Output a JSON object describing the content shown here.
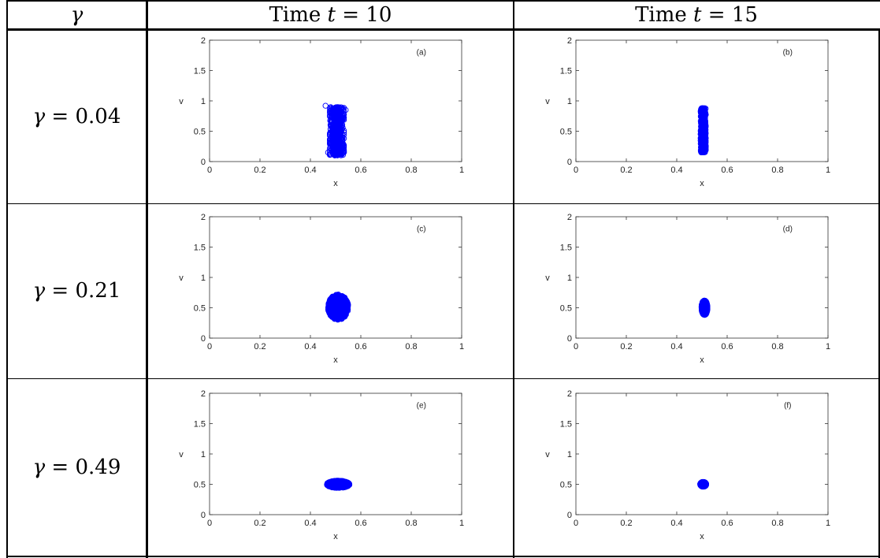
{
  "table": {
    "header_col1": "γ",
    "header_col2_prefix": "Time ",
    "header_col2_var": "t",
    "header_col2_suffix": " = 10",
    "header_col3_prefix": "Time ",
    "header_col3_var": "t",
    "header_col3_suffix": " = 15",
    "rows": [
      {
        "label_var": "γ",
        "label_value": " = 0.04"
      },
      {
        "label_var": "γ",
        "label_value": " = 0.21"
      },
      {
        "label_var": "γ",
        "label_value": " = 0.49"
      }
    ]
  },
  "colors": {
    "marker": "#0000ff",
    "axis": "#333333",
    "grid_border": "#000000"
  },
  "chart_data": [
    {
      "type": "scatter",
      "panel_label": "(a)",
      "xlabel": "x",
      "ylabel": "v",
      "xlim": [
        0,
        1
      ],
      "ylim": [
        0,
        2
      ],
      "xticks": [
        "0",
        "0.2",
        "0.4",
        "0.6",
        "0.8",
        "1"
      ],
      "yticks": [
        "0",
        "0.5",
        "1",
        "1.5",
        "2"
      ],
      "cloud": {
        "x_center": 0.505,
        "x_halfwidth": 0.028,
        "y_min": 0.1,
        "y_max": 0.9,
        "shape": "column"
      },
      "points": [
        [
          0.46,
          0.92
        ],
        [
          0.47,
          0.15
        ],
        [
          0.54,
          0.85
        ],
        [
          0.53,
          0.2
        ]
      ]
    },
    {
      "type": "scatter",
      "panel_label": "(b)",
      "xlabel": "x",
      "ylabel": "v",
      "xlim": [
        0,
        1
      ],
      "ylim": [
        0,
        2
      ],
      "xticks": [
        "0",
        "0.2",
        "0.4",
        "0.6",
        "0.8",
        "1"
      ],
      "yticks": [
        "0",
        "0.5",
        "1",
        "1.5",
        "2"
      ],
      "cloud": {
        "x_center": 0.505,
        "x_halfwidth": 0.01,
        "y_min": 0.15,
        "y_max": 0.88,
        "shape": "column"
      },
      "points": []
    },
    {
      "type": "scatter",
      "panel_label": "(c)",
      "xlabel": "x",
      "ylabel": "v",
      "xlim": [
        0,
        1
      ],
      "ylim": [
        0,
        2
      ],
      "xticks": [
        "0",
        "0.2",
        "0.4",
        "0.6",
        "0.8",
        "1"
      ],
      "yticks": [
        "0",
        "0.5",
        "1",
        "1.5",
        "2"
      ],
      "cloud": {
        "x_center": 0.51,
        "x_halfwidth": 0.04,
        "y_min": 0.3,
        "y_max": 0.72,
        "shape": "ellipse"
      },
      "points": []
    },
    {
      "type": "scatter",
      "panel_label": "(d)",
      "xlabel": "x",
      "ylabel": "v",
      "xlim": [
        0,
        1
      ],
      "ylim": [
        0,
        2
      ],
      "xticks": [
        "0",
        "0.2",
        "0.4",
        "0.6",
        "0.8",
        "1"
      ],
      "yticks": [
        "0",
        "0.5",
        "1",
        "1.5",
        "2"
      ],
      "cloud": {
        "x_center": 0.51,
        "x_halfwidth": 0.012,
        "y_min": 0.38,
        "y_max": 0.62,
        "shape": "ellipse"
      },
      "points": []
    },
    {
      "type": "scatter",
      "panel_label": "(e)",
      "xlabel": "x",
      "ylabel": "v",
      "xlim": [
        0,
        1
      ],
      "ylim": [
        0,
        2
      ],
      "xticks": [
        "0",
        "0.2",
        "0.4",
        "0.6",
        "0.8",
        "1"
      ],
      "yticks": [
        "0",
        "0.5",
        "1",
        "1.5",
        "2"
      ],
      "cloud": {
        "x_center": 0.51,
        "x_halfwidth": 0.045,
        "y_min": 0.44,
        "y_max": 0.56,
        "shape": "ellipse"
      },
      "points": []
    },
    {
      "type": "scatter",
      "panel_label": "(f)",
      "xlabel": "x",
      "ylabel": "v",
      "xlim": [
        0,
        1
      ],
      "ylim": [
        0,
        2
      ],
      "xticks": [
        "0",
        "0.2",
        "0.4",
        "0.6",
        "0.8",
        "1"
      ],
      "yticks": [
        "0",
        "0.5",
        "1",
        "1.5",
        "2"
      ],
      "cloud": {
        "x_center": 0.505,
        "x_halfwidth": 0.012,
        "y_min": 0.46,
        "y_max": 0.54,
        "shape": "ellipse"
      },
      "points": []
    }
  ]
}
